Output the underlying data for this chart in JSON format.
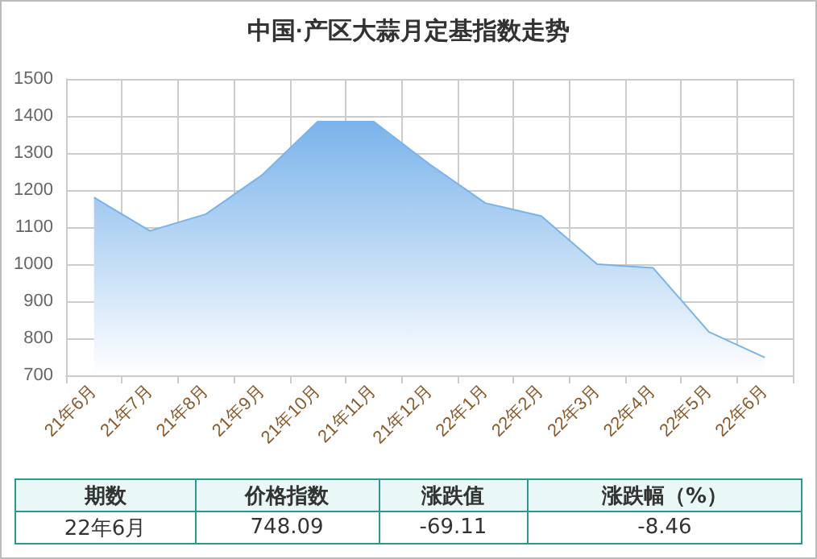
{
  "chart_data": {
    "type": "area",
    "title": "中国·产区大蒜月定基指数走势",
    "categories": [
      "21年6月",
      "21年7月",
      "21年8月",
      "21年9月",
      "21年10月",
      "21年11月",
      "21年12月",
      "22年1月",
      "22年2月",
      "22年3月",
      "22年4月",
      "22年5月",
      "22年6月"
    ],
    "series": [
      {
        "color": "#7ab3ea",
        "values": [
          1180,
          1090,
          1135,
          1240,
          1385,
          1385,
          1270,
          1165,
          1130,
          1000,
          990,
          817,
          748
        ]
      }
    ],
    "ylim": [
      700,
      1500
    ],
    "yticks": [
      700,
      800,
      900,
      1000,
      1100,
      1200,
      1300,
      1400,
      1500
    ],
    "grid": true,
    "annotations": [
      "期数",
      "价格指数",
      "涨跌值",
      "涨跌幅（%）",
      "22年6月",
      "748.09",
      "-69.11",
      "-8.46"
    ]
  }
}
